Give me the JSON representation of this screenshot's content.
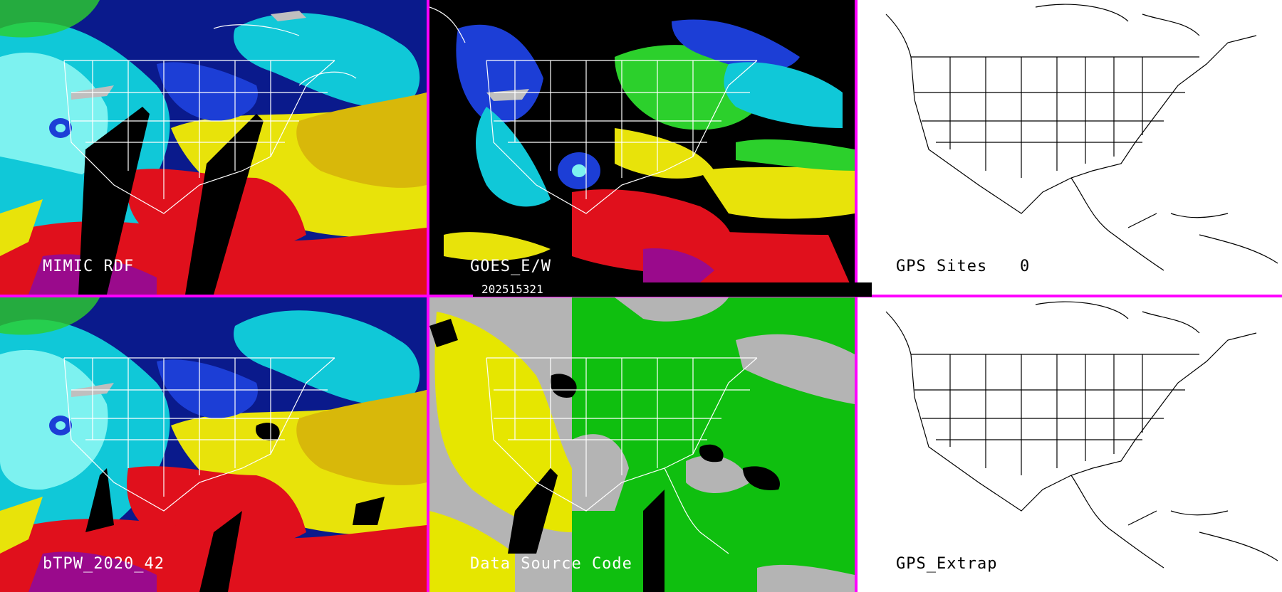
{
  "panels": [
    {
      "id": "p1",
      "label": "MIMIC RDF"
    },
    {
      "id": "p2",
      "label": "GOES_E/W"
    },
    {
      "id": "p3",
      "label": "GPS Sites",
      "count": "0"
    },
    {
      "id": "p4",
      "label": "bTPW_2020_42"
    },
    {
      "id": "p5",
      "label": "Data Source Code"
    },
    {
      "id": "p6",
      "label": "GPS_Extrap"
    }
  ],
  "timestamp": "202515321",
  "colors": {
    "divider": "#ff00ff",
    "tpw": [
      "#0a1a8c",
      "#1c3ed6",
      "#10c8d8",
      "#7df2f0",
      "#2cd02c",
      "#b8e61a",
      "#e8e30a",
      "#d8b80a",
      "#e0101c",
      "#9a0a8c",
      "#000000",
      "#bfbfbf"
    ],
    "source": [
      "#b4b4b4",
      "#e6e600",
      "#0fbf0f",
      "#000000"
    ],
    "outline_light": "#ffffff",
    "outline_dark": "#000000"
  }
}
